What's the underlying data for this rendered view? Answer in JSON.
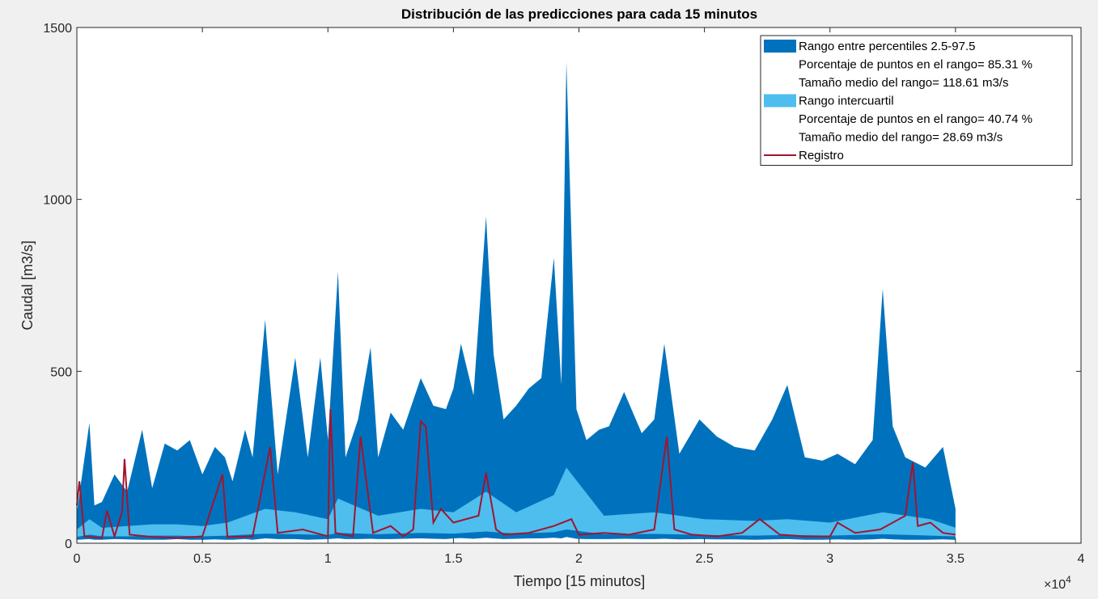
{
  "chart_data": {
    "type": "area",
    "title": "Distribución de las predicciones para cada 15 minutos",
    "xlabel": "Tiempo [15 minutos]",
    "ylabel": "Caudal [m3/s]",
    "x_multiplier": "×10",
    "x_multiplier_exp": "4",
    "xlim": [
      0,
      4
    ],
    "ylim": [
      0,
      1500
    ],
    "x_ticks": [
      0,
      0.5,
      1,
      1.5,
      2,
      2.5,
      3,
      3.5,
      4
    ],
    "x_tick_labels": [
      "0",
      "0.5",
      "1",
      "1.5",
      "2",
      "2.5",
      "3",
      "3.5",
      "4"
    ],
    "y_ticks": [
      0,
      500,
      1000,
      1500
    ],
    "y_tick_labels": [
      "0",
      "500",
      "1000",
      "1500"
    ],
    "grid": false,
    "legend_position": "top-right",
    "legend": [
      {
        "label": "Rango entre percentiles 2.5-97.5",
        "swatch": "patch",
        "color": "#0072bd"
      },
      {
        "label": "Porcentaje de puntos en el rango= 85.31 %",
        "swatch": "none"
      },
      {
        "label": "Tamaño medio del rango= 118.61 m3/s",
        "swatch": "none"
      },
      {
        "label": "Rango intercuartil",
        "swatch": "patch",
        "color": "#4dbeee"
      },
      {
        "label": "Porcentaje de puntos en el rango= 40.74 %",
        "swatch": "none"
      },
      {
        "label": "Tamaño medio del rango= 28.69 m3/s",
        "swatch": "none"
      },
      {
        "label": "Registro",
        "swatch": "line",
        "color": "#a2142f"
      }
    ],
    "series": [
      {
        "name": "Rango entre percentiles 2.5-97.5",
        "color": "#0072bd",
        "x": [
          0,
          0.05,
          0.07,
          0.1,
          0.15,
          0.2,
          0.26,
          0.3,
          0.35,
          0.4,
          0.45,
          0.5,
          0.55,
          0.59,
          0.62,
          0.67,
          0.7,
          0.75,
          0.8,
          0.87,
          0.92,
          0.97,
          1.0,
          1.04,
          1.07,
          1.12,
          1.17,
          1.2,
          1.25,
          1.3,
          1.37,
          1.42,
          1.47,
          1.5,
          1.53,
          1.58,
          1.63,
          1.66,
          1.7,
          1.75,
          1.8,
          1.85,
          1.9,
          1.93,
          1.95,
          1.99,
          2.03,
          2.08,
          2.12,
          2.18,
          2.25,
          2.3,
          2.34,
          2.4,
          2.48,
          2.55,
          2.62,
          2.7,
          2.77,
          2.83,
          2.9,
          2.97,
          3.03,
          3.1,
          3.17,
          3.21,
          3.25,
          3.3,
          3.38,
          3.45,
          3.5
        ],
        "upper": [
          90,
          350,
          110,
          120,
          200,
          150,
          330,
          160,
          290,
          270,
          300,
          200,
          280,
          250,
          180,
          330,
          250,
          650,
          200,
          540,
          250,
          540,
          300,
          790,
          250,
          360,
          570,
          250,
          380,
          330,
          480,
          400,
          390,
          450,
          580,
          430,
          950,
          550,
          360,
          400,
          450,
          480,
          830,
          460,
          1400,
          390,
          300,
          330,
          340,
          440,
          320,
          360,
          580,
          260,
          360,
          310,
          280,
          270,
          360,
          460,
          250,
          240,
          260,
          230,
          300,
          740,
          340,
          250,
          220,
          280,
          100
        ],
        "lower": [
          10,
          12,
          10,
          10,
          12,
          11,
          10,
          10,
          10,
          12,
          10,
          10,
          11,
          10,
          10,
          12,
          10,
          14,
          12,
          12,
          10,
          11,
          12,
          14,
          12,
          12,
          13,
          12,
          12,
          13,
          14,
          13,
          12,
          14,
          15,
          13,
          16,
          14,
          12,
          13,
          14,
          14,
          16,
          14,
          18,
          13,
          12,
          12,
          12,
          13,
          12,
          12,
          13,
          11,
          12,
          11,
          11,
          10,
          11,
          12,
          10,
          10,
          11,
          10,
          11,
          13,
          11,
          10,
          10,
          11,
          10
        ]
      },
      {
        "name": "Rango intercuartil",
        "color": "#4dbeee",
        "x": [
          0,
          0.05,
          0.1,
          0.2,
          0.3,
          0.4,
          0.5,
          0.6,
          0.75,
          0.87,
          1.0,
          1.04,
          1.2,
          1.37,
          1.5,
          1.63,
          1.75,
          1.9,
          1.95,
          2.1,
          2.3,
          2.5,
          2.7,
          2.83,
          3.0,
          3.21,
          3.4,
          3.5
        ],
        "upper": [
          40,
          70,
          45,
          50,
          55,
          55,
          50,
          60,
          100,
          90,
          70,
          130,
          80,
          100,
          90,
          150,
          90,
          140,
          220,
          80,
          90,
          70,
          65,
          70,
          60,
          90,
          70,
          45
        ],
        "lower": [
          18,
          25,
          20,
          20,
          22,
          22,
          20,
          22,
          28,
          26,
          24,
          30,
          26,
          30,
          28,
          34,
          28,
          32,
          40,
          26,
          27,
          24,
          22,
          24,
          22,
          26,
          22,
          20
        ]
      },
      {
        "name": "Registro",
        "color": "#a2142f",
        "x": [
          0,
          0.01,
          0.03,
          0.1,
          0.12,
          0.15,
          0.18,
          0.19,
          0.21,
          0.3,
          0.4,
          0.5,
          0.58,
          0.6,
          0.7,
          0.77,
          0.8,
          0.9,
          1.0,
          1.01,
          1.03,
          1.1,
          1.13,
          1.18,
          1.25,
          1.3,
          1.34,
          1.37,
          1.39,
          1.42,
          1.45,
          1.5,
          1.6,
          1.63,
          1.67,
          1.7,
          1.8,
          1.9,
          1.97,
          2.0,
          2.1,
          2.2,
          2.3,
          2.35,
          2.38,
          2.45,
          2.55,
          2.65,
          2.72,
          2.8,
          2.9,
          3.0,
          3.03,
          3.1,
          3.2,
          3.25,
          3.3,
          3.33,
          3.35,
          3.4,
          3.45,
          3.5
        ],
        "y": [
          110,
          180,
          20,
          15,
          95,
          20,
          90,
          245,
          25,
          18,
          15,
          20,
          200,
          18,
          20,
          280,
          30,
          40,
          20,
          390,
          30,
          20,
          310,
          30,
          50,
          20,
          40,
          355,
          340,
          60,
          100,
          60,
          80,
          205,
          40,
          25,
          30,
          50,
          70,
          25,
          30,
          25,
          40,
          310,
          40,
          25,
          20,
          30,
          70,
          25,
          20,
          20,
          60,
          30,
          40,
          60,
          80,
          235,
          50,
          60,
          30,
          25
        ]
      }
    ]
  }
}
